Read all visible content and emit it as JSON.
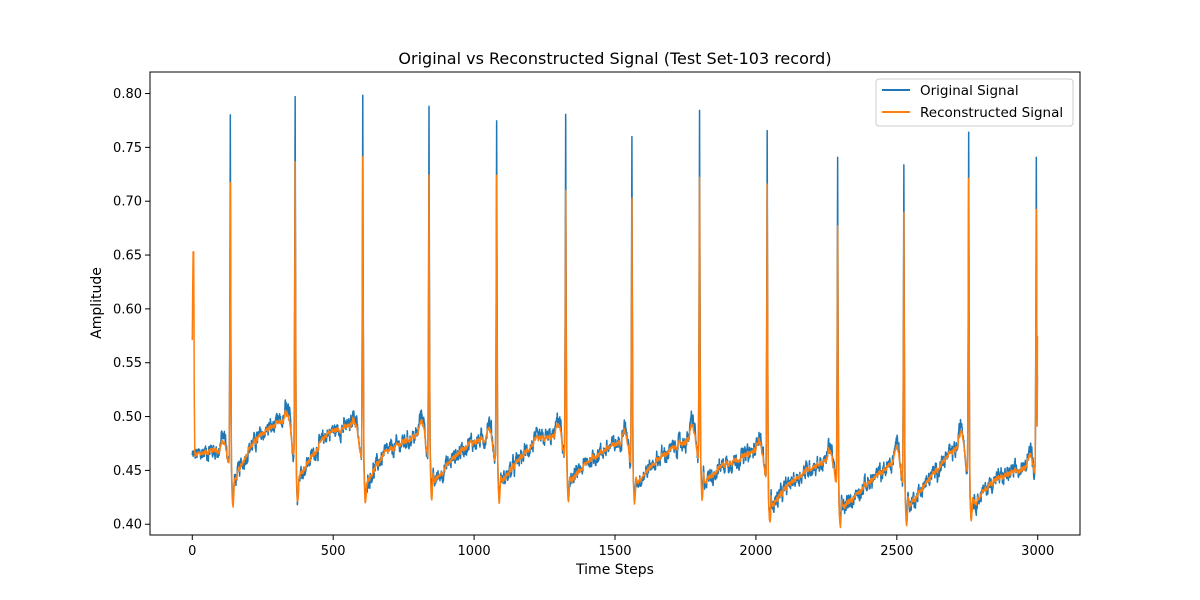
{
  "chart_data": {
    "type": "line",
    "title": "Original vs Reconstructed Signal (Test Set-103 record)",
    "xlabel": "Time Steps",
    "ylabel": "Amplitude",
    "xlim": [
      -150,
      3150
    ],
    "ylim": [
      0.39,
      0.82
    ],
    "xticks": [
      0,
      500,
      1000,
      1500,
      2000,
      2500,
      3000
    ],
    "yticks": [
      0.4,
      0.45,
      0.5,
      0.55,
      0.6,
      0.65,
      0.7,
      0.75,
      0.8
    ],
    "grid": false,
    "legend_position": "top-right",
    "series": [
      {
        "name": "Original Signal",
        "color": "#1f77b4"
      },
      {
        "name": "Reconstructed Signal",
        "color": "#ff7f0e"
      }
    ],
    "n_points": 3000,
    "r_peaks": [
      {
        "x": 135,
        "original": 0.781,
        "reconstructed": 0.718
      },
      {
        "x": 365,
        "original": 0.801,
        "reconstructed": 0.738
      },
      {
        "x": 605,
        "original": 0.797,
        "reconstructed": 0.741
      },
      {
        "x": 840,
        "original": 0.786,
        "reconstructed": 0.724
      },
      {
        "x": 1080,
        "original": 0.779,
        "reconstructed": 0.725
      },
      {
        "x": 1325,
        "original": 0.774,
        "reconstructed": 0.707
      },
      {
        "x": 1560,
        "original": 0.757,
        "reconstructed": 0.702
      },
      {
        "x": 1800,
        "original": 0.778,
        "reconstructed": 0.72
      },
      {
        "x": 2040,
        "original": 0.762,
        "reconstructed": 0.714
      },
      {
        "x": 2290,
        "original": 0.744,
        "reconstructed": 0.678
      },
      {
        "x": 2525,
        "original": 0.742,
        "reconstructed": 0.692
      },
      {
        "x": 2755,
        "original": 0.767,
        "reconstructed": 0.722
      },
      {
        "x": 2995,
        "original": 0.741,
        "reconstructed": 0.692
      }
    ],
    "baseline": [
      {
        "x": 0,
        "y": 0.463
      },
      {
        "x": 80,
        "y": 0.47
      },
      {
        "x": 120,
        "y": 0.462
      },
      {
        "x": 150,
        "y": 0.44
      },
      {
        "x": 200,
        "y": 0.47
      },
      {
        "x": 260,
        "y": 0.487
      },
      {
        "x": 330,
        "y": 0.497
      },
      {
        "x": 380,
        "y": 0.445
      },
      {
        "x": 430,
        "y": 0.465
      },
      {
        "x": 480,
        "y": 0.485
      },
      {
        "x": 570,
        "y": 0.492
      },
      {
        "x": 620,
        "y": 0.44
      },
      {
        "x": 680,
        "y": 0.465
      },
      {
        "x": 740,
        "y": 0.475
      },
      {
        "x": 815,
        "y": 0.485
      },
      {
        "x": 860,
        "y": 0.44
      },
      {
        "x": 920,
        "y": 0.46
      },
      {
        "x": 980,
        "y": 0.475
      },
      {
        "x": 1050,
        "y": 0.48
      },
      {
        "x": 1100,
        "y": 0.44
      },
      {
        "x": 1160,
        "y": 0.46
      },
      {
        "x": 1220,
        "y": 0.478
      },
      {
        "x": 1300,
        "y": 0.482
      },
      {
        "x": 1345,
        "y": 0.44
      },
      {
        "x": 1410,
        "y": 0.46
      },
      {
        "x": 1470,
        "y": 0.47
      },
      {
        "x": 1530,
        "y": 0.478
      },
      {
        "x": 1580,
        "y": 0.44
      },
      {
        "x": 1650,
        "y": 0.46
      },
      {
        "x": 1720,
        "y": 0.473
      },
      {
        "x": 1775,
        "y": 0.48
      },
      {
        "x": 1820,
        "y": 0.44
      },
      {
        "x": 1880,
        "y": 0.455
      },
      {
        "x": 1950,
        "y": 0.462
      },
      {
        "x": 2010,
        "y": 0.47
      },
      {
        "x": 2060,
        "y": 0.418
      },
      {
        "x": 2120,
        "y": 0.438
      },
      {
        "x": 2190,
        "y": 0.452
      },
      {
        "x": 2260,
        "y": 0.46
      },
      {
        "x": 2310,
        "y": 0.415
      },
      {
        "x": 2370,
        "y": 0.432
      },
      {
        "x": 2430,
        "y": 0.445
      },
      {
        "x": 2500,
        "y": 0.46
      },
      {
        "x": 2545,
        "y": 0.418
      },
      {
        "x": 2610,
        "y": 0.44
      },
      {
        "x": 2670,
        "y": 0.46
      },
      {
        "x": 2730,
        "y": 0.475
      },
      {
        "x": 2775,
        "y": 0.42
      },
      {
        "x": 2840,
        "y": 0.44
      },
      {
        "x": 2900,
        "y": 0.447
      },
      {
        "x": 2970,
        "y": 0.452
      },
      {
        "x": 3000,
        "y": 0.45
      }
    ],
    "start_transient": {
      "x": 5,
      "reconstructed": 0.653
    },
    "end_values": {
      "original": 0.538,
      "reconstructed": 0.575
    }
  }
}
